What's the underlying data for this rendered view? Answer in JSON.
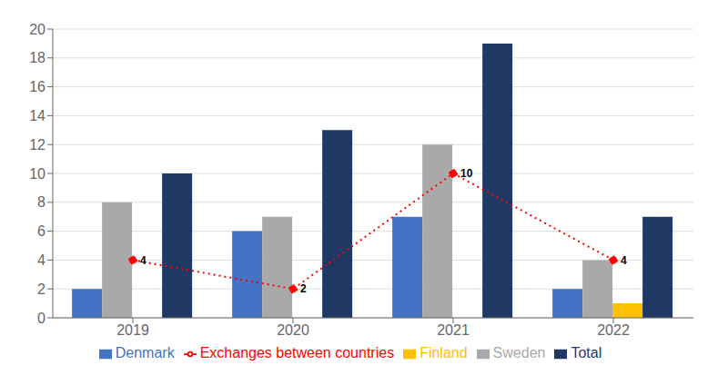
{
  "chart_data": {
    "type": "bar",
    "categories": [
      "2019",
      "2020",
      "2021",
      "2022"
    ],
    "series": [
      {
        "name": "Denmark",
        "color": "#4472C4",
        "values": [
          2,
          6,
          7,
          2
        ]
      },
      {
        "name": "Sweden",
        "color": "#A9A9A9",
        "values": [
          8,
          7,
          12,
          4
        ]
      },
      {
        "name": "Finland",
        "color": "#FFC000",
        "values": [
          0,
          0,
          0,
          1
        ]
      },
      {
        "name": "Total",
        "color": "#1F3864",
        "values": [
          10,
          13,
          19,
          7
        ]
      },
      {
        "name": "Exchanges between countries",
        "type": "line",
        "color": "#FF0000",
        "values": [
          4,
          2,
          10,
          4
        ],
        "line_style": "dotted",
        "marker": "circle",
        "data_labels": true
      }
    ],
    "ylim": [
      0,
      20
    ],
    "yticks": [
      0,
      2,
      4,
      6,
      8,
      10,
      12,
      14,
      16,
      18,
      20
    ],
    "grid": true,
    "legend": "bottom"
  }
}
